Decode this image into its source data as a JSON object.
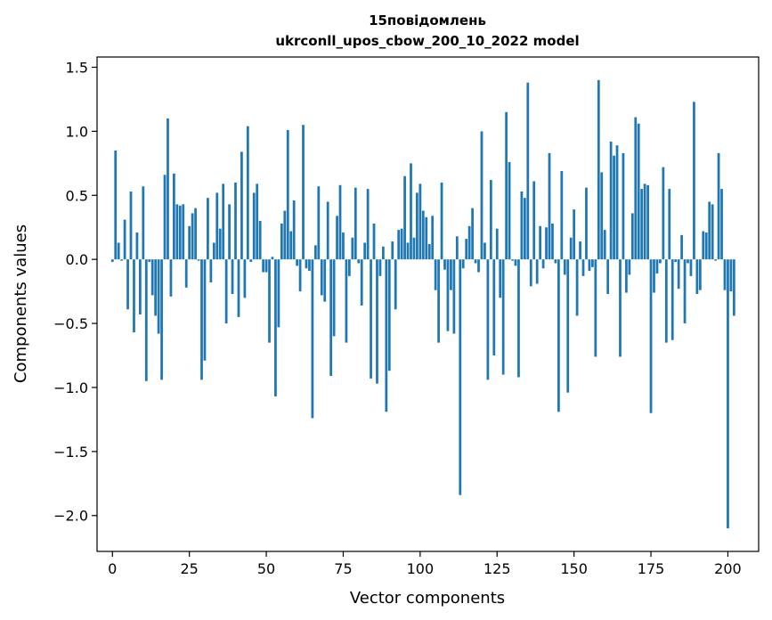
{
  "chart_data": {
    "type": "bar",
    "title_line1": "15повідомлень",
    "title_line2": "ukrconll_upos_cbow_200_10_2022 model",
    "xlabel": "Vector components",
    "ylabel": "Components values",
    "xlim": [
      -5,
      210
    ],
    "ylim": [
      -2.28,
      1.58
    ],
    "x_ticks": [
      0,
      25,
      50,
      75,
      100,
      125,
      150,
      175,
      200
    ],
    "y_ticks": [
      -2.0,
      -1.5,
      -1.0,
      -0.5,
      0.0,
      0.5,
      1.0,
      1.5
    ],
    "y_tick_labels": [
      "−2.0",
      "−1.5",
      "−1.0",
      "−0.5",
      "0.0",
      "0.5",
      "1.0",
      "1.5"
    ],
    "color": "#1f77b4",
    "values": [
      -0.02,
      0.85,
      0.13,
      -0.01,
      0.31,
      -0.39,
      0.53,
      -0.57,
      0.21,
      -0.43,
      0.57,
      -0.95,
      -0.02,
      -0.28,
      -0.44,
      -0.58,
      -0.94,
      0.66,
      1.1,
      -0.29,
      0.67,
      0.43,
      0.42,
      0.43,
      -0.22,
      0.26,
      0.36,
      0.4,
      -0.01,
      -0.94,
      -0.79,
      0.48,
      -0.18,
      0.13,
      0.52,
      0.24,
      0.59,
      -0.5,
      0.43,
      -0.27,
      0.6,
      -0.45,
      0.84,
      -0.3,
      1.04,
      -0.02,
      0.52,
      0.59,
      0.3,
      -0.1,
      -0.1,
      -0.65,
      0.02,
      -1.07,
      -0.53,
      0.28,
      0.38,
      1.01,
      0.22,
      0.46,
      -0.05,
      -0.25,
      1.05,
      -0.07,
      -0.09,
      -1.24,
      0.11,
      0.57,
      -0.28,
      -0.33,
      0.45,
      -0.91,
      -0.6,
      0.34,
      0.58,
      0.21,
      -0.65,
      -0.13,
      0.17,
      0.56,
      -0.03,
      -0.36,
      0.13,
      0.55,
      -0.93,
      0.28,
      -0.97,
      -0.13,
      0.1,
      -1.19,
      -0.87,
      0.14,
      -0.39,
      0.23,
      0.24,
      0.65,
      0.13,
      0.75,
      0.17,
      0.52,
      0.59,
      0.38,
      0.33,
      0.12,
      0.34,
      -0.24,
      -0.65,
      0.6,
      -0.08,
      -0.56,
      -0.24,
      -0.58,
      0.18,
      -1.84,
      -0.07,
      0.16,
      0.26,
      0.4,
      -0.03,
      -0.1,
      1.0,
      0.13,
      -0.94,
      0.62,
      -0.75,
      0.24,
      -0.3,
      -0.9,
      1.15,
      0.76,
      -0.01,
      -0.05,
      -0.92,
      0.53,
      0.48,
      1.38,
      -0.21,
      0.61,
      -0.19,
      0.26,
      -0.07,
      0.25,
      0.83,
      0.28,
      -0.03,
      -1.19,
      0.69,
      -0.12,
      -1.04,
      0.17,
      0.39,
      -0.44,
      0.14,
      -0.13,
      0.56,
      -0.09,
      -0.06,
      -0.76,
      1.4,
      0.68,
      0.23,
      -0.27,
      0.92,
      0.81,
      0.89,
      -0.76,
      0.83,
      -0.26,
      -0.12,
      0.36,
      1.11,
      1.06,
      0.55,
      0.59,
      0.58,
      -1.2,
      -0.26,
      -0.11,
      -0.03,
      0.72,
      -0.65,
      0.55,
      -0.63,
      -0.02,
      -0.23,
      0.19,
      -0.5,
      -0.03,
      -0.13,
      1.23,
      -0.27,
      -0.24,
      0.22,
      0.21,
      0.45,
      0.43,
      -0.01,
      0.83,
      0.55,
      -0.24,
      -2.1,
      -0.25,
      -0.44
    ]
  }
}
